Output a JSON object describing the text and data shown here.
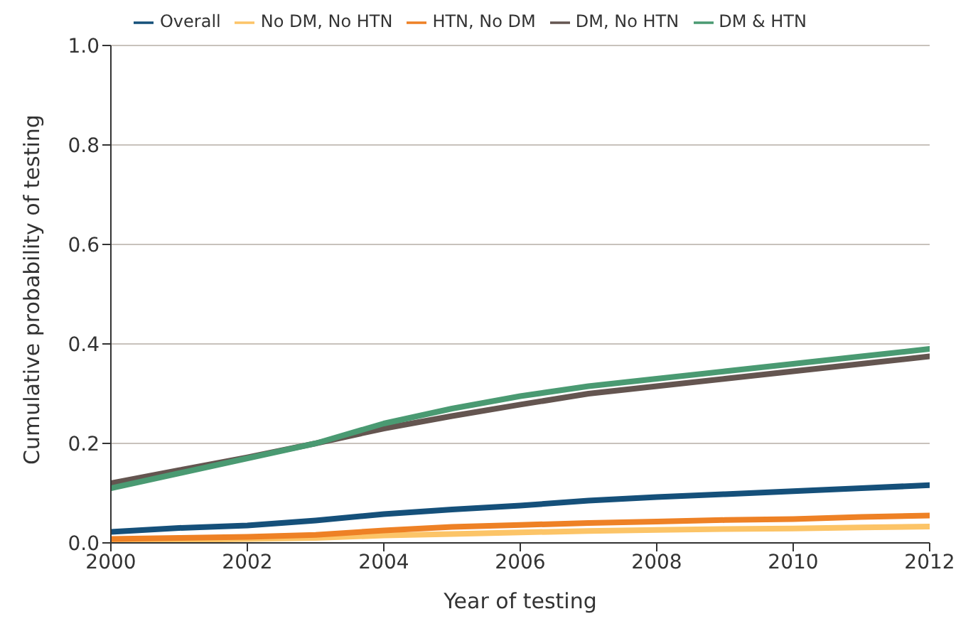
{
  "chart_data": {
    "type": "line",
    "xlabel": "Year of testing",
    "ylabel": "Cumulative probability of testing",
    "x": [
      2000,
      2001,
      2002,
      2003,
      2004,
      2005,
      2006,
      2007,
      2008,
      2009,
      2010,
      2011,
      2012
    ],
    "xlim": [
      2000,
      2012
    ],
    "xticks": [
      2000,
      2002,
      2004,
      2006,
      2008,
      2010,
      2012
    ],
    "ylim": [
      0,
      1
    ],
    "yticks": [
      {
        "value": 0,
        "label": "0.0"
      },
      {
        "value": 0.2,
        "label": "0.2"
      },
      {
        "value": 0.4,
        "label": "0.4"
      },
      {
        "value": 0.6,
        "label": "0.6"
      },
      {
        "value": 0.8,
        "label": "0.8"
      },
      {
        "value": 1,
        "label": "1.0"
      }
    ],
    "grid": "y",
    "legend": "top",
    "marker": "none",
    "line_style": "solid",
    "series": [
      {
        "name": "Overall",
        "color": "#15507a",
        "values": [
          0.022,
          0.03,
          0.035,
          0.045,
          0.058,
          0.067,
          0.075,
          0.085,
          0.092,
          0.098,
          0.104,
          0.11,
          0.116
        ]
      },
      {
        "name": "No DM, No HTN",
        "color": "#fcc467",
        "values": [
          0.005,
          0.006,
          0.008,
          0.01,
          0.015,
          0.018,
          0.021,
          0.024,
          0.026,
          0.028,
          0.029,
          0.031,
          0.033
        ]
      },
      {
        "name": "HTN, No DM",
        "color": "#ee8125",
        "values": [
          0.008,
          0.01,
          0.012,
          0.016,
          0.025,
          0.032,
          0.036,
          0.04,
          0.043,
          0.046,
          0.048,
          0.052,
          0.055
        ]
      },
      {
        "name": "DM, No HTN",
        "color": "#645550",
        "values": [
          0.12,
          0.146,
          0.172,
          0.2,
          0.23,
          0.255,
          0.278,
          0.3,
          0.315,
          0.33,
          0.345,
          0.36,
          0.375
        ]
      },
      {
        "name": "DM & HTN",
        "color": "#4a9a72",
        "values": [
          0.11,
          0.14,
          0.17,
          0.2,
          0.24,
          0.27,
          0.295,
          0.315,
          0.33,
          0.345,
          0.36,
          0.375,
          0.39
        ]
      }
    ]
  }
}
